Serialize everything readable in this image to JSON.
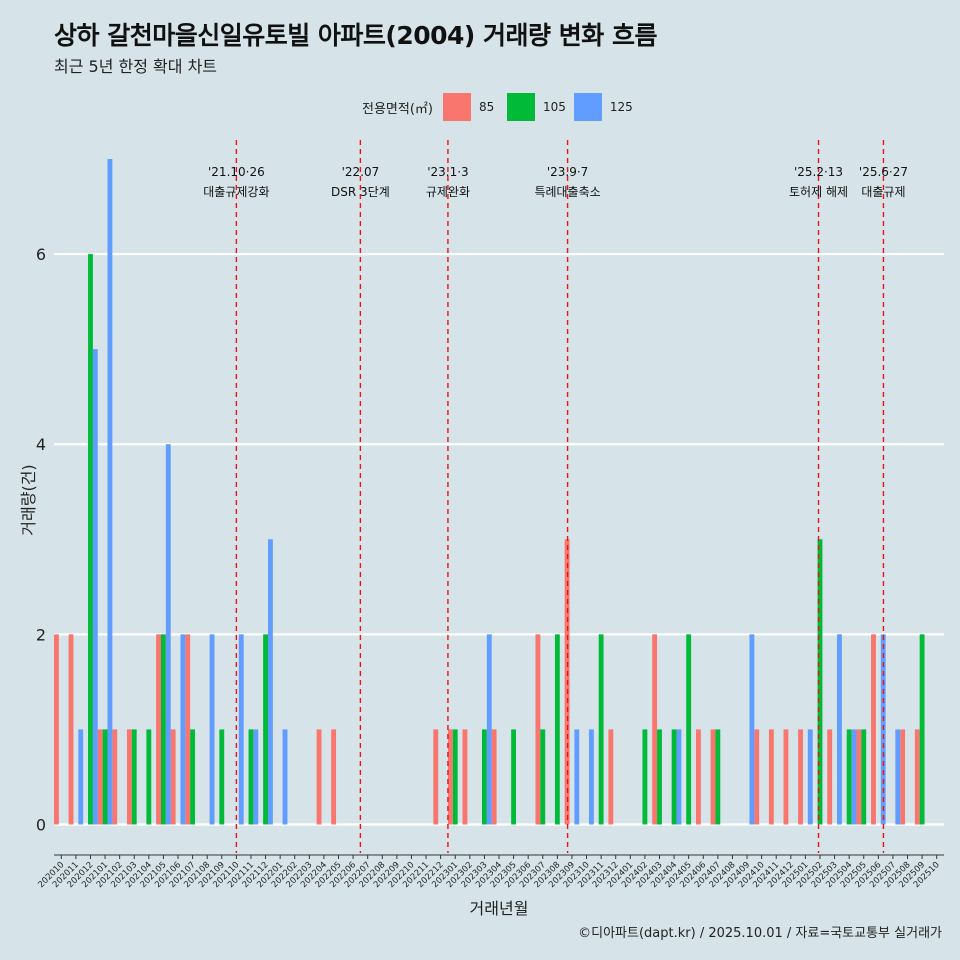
{
  "title": "상하 갈천마을신일유토빌 아파트(2004) 거래량 변화 흐름",
  "subtitle": "최근 5년 한정 확대 차트",
  "caption": "©디아파트(dapt.kr) / 2025.10.01 / 자료=국토교통부 실거래가",
  "legend": {
    "title": "전용면적(㎡)",
    "items": [
      {
        "label": "85",
        "color": "#f8766d"
      },
      {
        "label": "105",
        "color": "#00ba38"
      },
      {
        "label": "125",
        "color": "#619cff"
      }
    ]
  },
  "chart_data": {
    "type": "bar",
    "title": "상하 갈천마을신일유토빌 아파트(2004) 거래량 변화 흐름",
    "xlabel": "거래년월",
    "ylabel": "거래량(건)",
    "ylim": [
      -0.3,
      7.2
    ],
    "yticks": [
      0,
      2,
      4,
      6
    ],
    "categories": [
      "202010",
      "202011",
      "202012",
      "202101",
      "202102",
      "202103",
      "202104",
      "202105",
      "202106",
      "202107",
      "202108",
      "202109",
      "202110",
      "202111",
      "202112",
      "202201",
      "202202",
      "202203",
      "202204",
      "202205",
      "202206",
      "202207",
      "202208",
      "202209",
      "202210",
      "202211",
      "202212",
      "202301",
      "202302",
      "202303",
      "202304",
      "202305",
      "202306",
      "202307",
      "202308",
      "202309",
      "202310",
      "202311",
      "202312",
      "202401",
      "202402",
      "202403",
      "202404",
      "202405",
      "202406",
      "202407",
      "202408",
      "202409",
      "202410",
      "202411",
      "202412",
      "202501",
      "202502",
      "202503",
      "202504",
      "202505",
      "202506",
      "202507",
      "202508",
      "202509",
      "202510"
    ],
    "series": [
      {
        "name": "85",
        "color": "#f8766d",
        "values": [
          2,
          2,
          0,
          1,
          1,
          1,
          0,
          2,
          1,
          2,
          0,
          0,
          0,
          0,
          0,
          0,
          0,
          0,
          1,
          1,
          0,
          0,
          0,
          0,
          0,
          0,
          1,
          1,
          1,
          0,
          1,
          0,
          0,
          2,
          0,
          3,
          0,
          0,
          1,
          0,
          0,
          2,
          0,
          0,
          1,
          1,
          0,
          0,
          1,
          1,
          1,
          1,
          0,
          1,
          0,
          1,
          2,
          0,
          1,
          1,
          0
        ]
      },
      {
        "name": "105",
        "color": "#00ba38",
        "values": [
          0,
          0,
          6,
          1,
          0,
          1,
          1,
          2,
          0,
          1,
          0,
          1,
          0,
          1,
          2,
          0,
          0,
          0,
          0,
          0,
          0,
          0,
          0,
          0,
          0,
          0,
          0,
          1,
          0,
          1,
          0,
          1,
          0,
          1,
          2,
          0,
          0,
          2,
          0,
          0,
          1,
          1,
          1,
          2,
          0,
          1,
          0,
          0,
          0,
          0,
          0,
          0,
          3,
          0,
          1,
          1,
          0,
          0,
          0,
          2,
          0
        ]
      },
      {
        "name": "125",
        "color": "#619cff",
        "values": [
          0,
          1,
          5,
          7,
          0,
          0,
          0,
          4,
          2,
          0,
          2,
          0,
          2,
          1,
          3,
          1,
          0,
          0,
          0,
          0,
          0,
          0,
          0,
          0,
          0,
          0,
          0,
          0,
          0,
          2,
          0,
          0,
          0,
          0,
          0,
          1,
          1,
          0,
          0,
          0,
          0,
          0,
          1,
          0,
          0,
          0,
          0,
          2,
          0,
          0,
          0,
          1,
          0,
          2,
          1,
          0,
          2,
          1,
          0,
          0,
          0
        ]
      }
    ],
    "annotations": [
      {
        "date": "'21.10·26",
        "label": "대출규제강화",
        "month": "202110",
        "x_offset": 0.5
      },
      {
        "date": "'22.07",
        "label": "DSR 3단계",
        "month": "202207",
        "x_offset": 0
      },
      {
        "date": "'23.1·3",
        "label": "규제완화",
        "month": "202301",
        "x_offset": 0
      },
      {
        "date": "'23.9·7",
        "label": "특례대출축소",
        "month": "202309",
        "x_offset": 0.2
      },
      {
        "date": "'25.2·13",
        "label": "토허제 해제",
        "month": "202502",
        "x_offset": 0.4
      },
      {
        "date": "'25.6·27",
        "label": "대출규제",
        "month": "202506",
        "x_offset": 0.85
      }
    ]
  }
}
